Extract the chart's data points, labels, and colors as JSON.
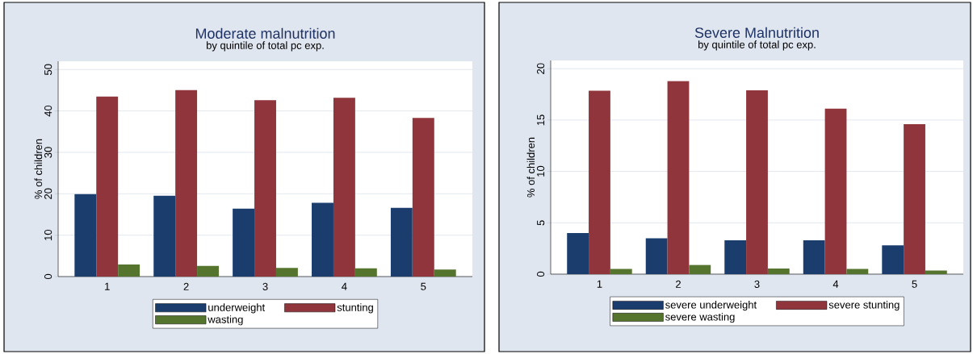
{
  "chart_data": [
    {
      "type": "bar",
      "title": "Moderate malnutrition",
      "subtitle": "by quintile of total pc exp.",
      "ylabel": "% of children",
      "categories": [
        "1",
        "2",
        "3",
        "4",
        "5"
      ],
      "series": [
        {
          "name": "underweight",
          "color": "#1a3d6e",
          "values": [
            19.9,
            19.5,
            16.4,
            17.8,
            16.6
          ]
        },
        {
          "name": "stunting",
          "color": "#90353b",
          "values": [
            43.5,
            45.1,
            42.6,
            43.2,
            38.3
          ]
        },
        {
          "name": "wasting",
          "color": "#55752f",
          "values": [
            2.9,
            2.6,
            2.1,
            2.0,
            1.7
          ]
        }
      ],
      "ylim": [
        0,
        52
      ],
      "yticks": [
        0,
        10,
        20,
        30,
        40,
        50
      ],
      "grid": "y",
      "legend": "bottom"
    },
    {
      "type": "bar",
      "title": "Severe Malnutrition",
      "subtitle": "by quintile of total pc exp.",
      "ylabel": "% of children",
      "categories": [
        "1",
        "2",
        "3",
        "4",
        "5"
      ],
      "series": [
        {
          "name": "severe underweight",
          "color": "#1a3d6e",
          "values": [
            4.0,
            3.5,
            3.3,
            3.3,
            2.8
          ]
        },
        {
          "name": "severe stunting",
          "color": "#90353b",
          "values": [
            17.85,
            18.8,
            17.9,
            16.1,
            14.6
          ]
        },
        {
          "name": "severe wasting",
          "color": "#55752f",
          "values": [
            0.5,
            0.9,
            0.55,
            0.5,
            0.35
          ]
        }
      ],
      "ylim": [
        0,
        20.8
      ],
      "yticks": [
        0,
        5,
        10,
        15,
        20
      ],
      "grid": "y",
      "legend": "bottom"
    }
  ]
}
